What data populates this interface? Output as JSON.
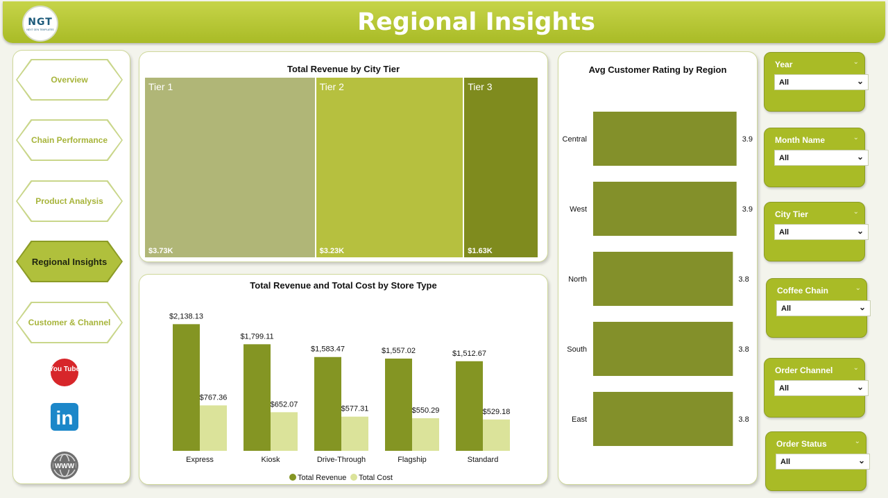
{
  "header": {
    "title": "Regional Insights",
    "logo_text": "NGT",
    "logo_subtext": "NEXT GEN TEMPLATES"
  },
  "nav": {
    "items": [
      {
        "label": "Overview",
        "active": false
      },
      {
        "label": "Chain Performance",
        "active": false
      },
      {
        "label": "Product Analysis",
        "active": false
      },
      {
        "label": "Regional Insights",
        "active": true
      },
      {
        "label": "Customer & Channel",
        "active": false
      }
    ],
    "social": [
      {
        "icon": "youtube-icon",
        "label": "You Tube"
      },
      {
        "icon": "linkedin-icon",
        "label": "in"
      },
      {
        "icon": "globe-www-icon",
        "label": "WWW"
      }
    ]
  },
  "colors": {
    "accent": "#a9bb26",
    "dark_olive": "#7f8b1e",
    "bar_olive": "#83902a",
    "light_olive": "#dbe39a",
    "tier1": "#b0b677",
    "tier2": "#b6c03f",
    "tier3": "#7f8b1e"
  },
  "treemap": {
    "title": "Total Revenue by City Tier"
  },
  "bar_chart": {
    "title": "Total Revenue and Total Cost by Store Type"
  },
  "rating_chart": {
    "title": "Avg Customer Rating by Region"
  },
  "slicers": [
    {
      "title": "Year",
      "value": "All"
    },
    {
      "title": "Month Name",
      "value": "All"
    },
    {
      "title": "City Tier",
      "value": "All"
    },
    {
      "title": "Coffee Chain",
      "value": "All"
    },
    {
      "title": "Order Channel",
      "value": "All"
    },
    {
      "title": "Order Status",
      "value": "All"
    }
  ],
  "chart_data": [
    {
      "type": "treemap",
      "title": "Total Revenue by City Tier",
      "categories": [
        "Tier 1",
        "Tier 2",
        "Tier 3"
      ],
      "values": [
        3730,
        3230,
        1630
      ],
      "value_labels": [
        "$3.73K",
        "$3.23K",
        "$1.63K"
      ]
    },
    {
      "type": "bar",
      "title": "Total Revenue and Total Cost by Store Type",
      "categories": [
        "Express",
        "Kiosk",
        "Drive-Through",
        "Flagship",
        "Standard"
      ],
      "series": [
        {
          "name": "Total Revenue",
          "values": [
            2138.13,
            1799.11,
            1583.47,
            1557.02,
            1512.67
          ],
          "labels": [
            "$2,138.13",
            "$1,799.11",
            "$1,583.47",
            "$1,557.02",
            "$1,512.67"
          ],
          "color": "#849523"
        },
        {
          "name": "Total Cost",
          "values": [
            767.36,
            652.07,
            577.31,
            550.29,
            529.18
          ],
          "labels": [
            "$767.36",
            "$652.07",
            "$577.31",
            "$550.29",
            "$529.18"
          ],
          "color": "#dbe39a"
        }
      ],
      "ylim": [
        0,
        2400
      ],
      "legend": "bottom",
      "grid": false
    },
    {
      "type": "bar",
      "orientation": "horizontal",
      "title": "Avg Customer Rating by Region",
      "categories": [
        "Central",
        "West",
        "North",
        "South",
        "East"
      ],
      "values": [
        3.9,
        3.9,
        3.8,
        3.8,
        3.8
      ],
      "value_labels": [
        "3.9",
        "3.9",
        "3.8",
        "3.8",
        "3.8"
      ],
      "color": "#83902a"
    }
  ]
}
